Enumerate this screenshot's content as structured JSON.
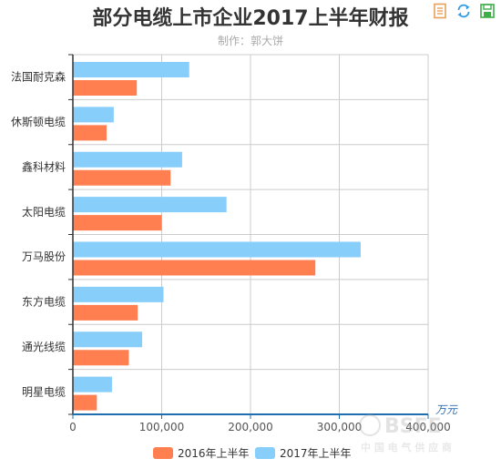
{
  "title": "部分电缆上市企业2017上半年财报",
  "subtitle": "制作：郭大饼",
  "toolbox": [
    {
      "name": "data-view-icon",
      "color": "#e8a05a"
    },
    {
      "name": "refresh-icon",
      "color": "#2f9be6"
    },
    {
      "name": "save-icon",
      "color": "#3fae49"
    }
  ],
  "chart_data": {
    "type": "bar",
    "orientation": "horizontal",
    "title": "部分电缆上市企业2017上半年财报",
    "subtitle": "制作：郭大饼",
    "xlabel": "万元",
    "ylabel": "",
    "xlim": [
      0,
      400000
    ],
    "xticks": [
      "0",
      "100,000",
      "200,000",
      "300,000",
      "400,000"
    ],
    "categories": [
      "法国耐克森",
      "休斯顿电缆",
      "鑫科材料",
      "太阳电缆",
      "万马股份",
      "东方电缆",
      "通光线缆",
      "明星电缆"
    ],
    "series": [
      {
        "name": "2016年上半年",
        "color": "#ff7f50",
        "values": [
          72000,
          38000,
          110000,
          100000,
          273000,
          73000,
          63000,
          27000
        ]
      },
      {
        "name": "2017年上半年",
        "color": "#87cefa",
        "values": [
          131000,
          46000,
          123000,
          173000,
          324000,
          102000,
          78000,
          44000
        ]
      }
    ],
    "grid": true,
    "legend": "bottom-center"
  },
  "watermark": {
    "main": "BSFE",
    "sub": "中 国 电 气 供 应 商"
  }
}
